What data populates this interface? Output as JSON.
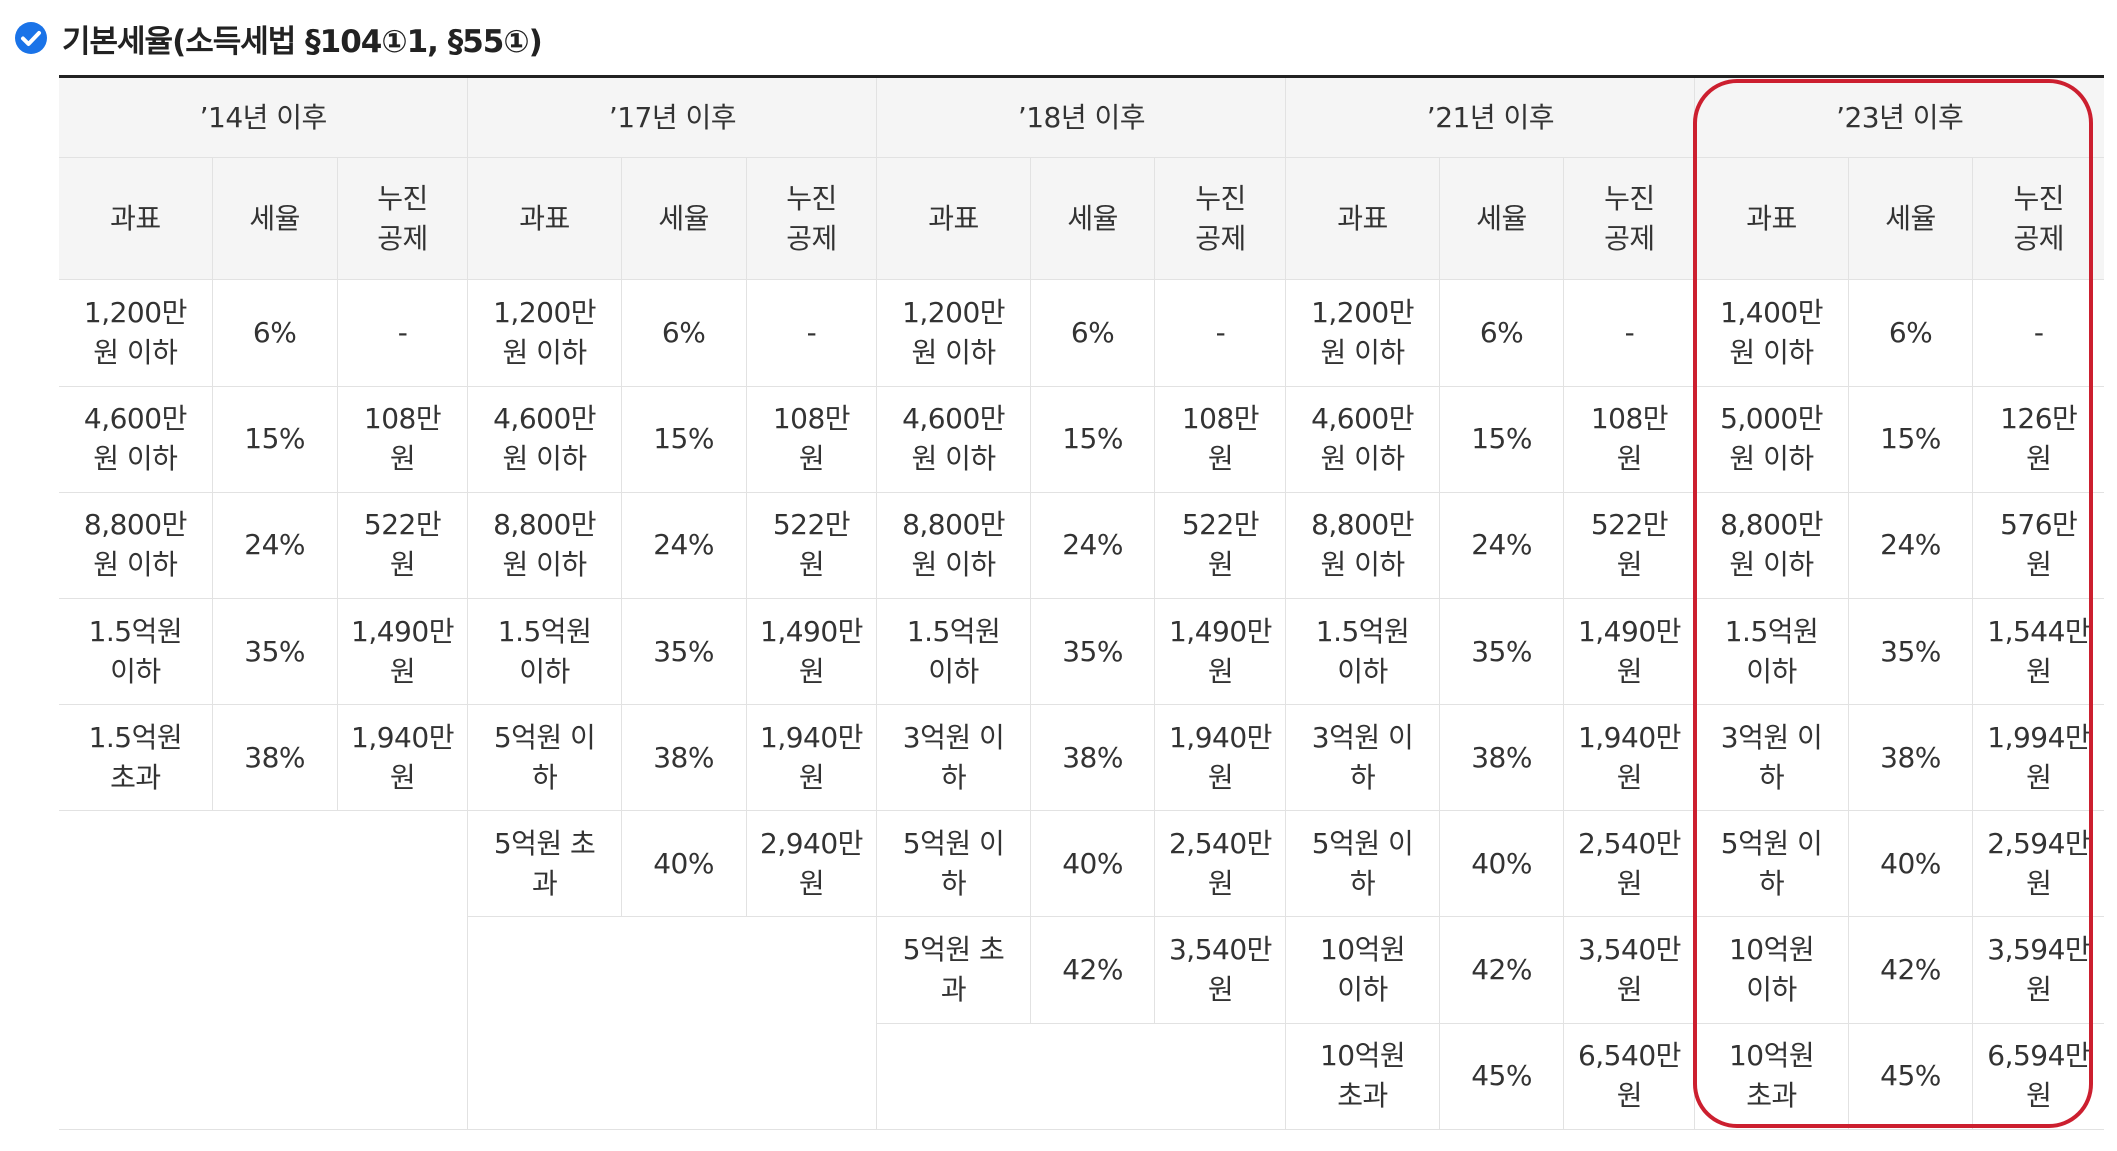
{
  "title": {
    "icon": "check-circle-icon",
    "text": "기본세율(소득세법 §104①1, §55①)"
  },
  "colors": {
    "accent_check": "#1a73e8",
    "highlight_border": "#cc1f2f",
    "header_bg": "#f5f5f5"
  },
  "table": {
    "periods": [
      "’14년 이후",
      "’17년 이후",
      "’18년 이후",
      "’21년 이후",
      "’23년 이후"
    ],
    "sub_headers": {
      "base": "과표",
      "rate": "세율",
      "deduction": "누진\n공제"
    },
    "columns": [
      {
        "rows": [
          [
            "1,200만\n원 이하",
            "6%",
            "-"
          ],
          [
            "4,600만\n원 이하",
            "15%",
            "108만\n원"
          ],
          [
            "8,800만\n원 이하",
            "24%",
            "522만\n원"
          ],
          [
            "1.5억원\n이하",
            "35%",
            "1,490만\n원"
          ],
          [
            "1.5억원\n초과",
            "38%",
            "1,940만\n원"
          ]
        ]
      },
      {
        "rows": [
          [
            "1,200만\n원 이하",
            "6%",
            "-"
          ],
          [
            "4,600만\n원 이하",
            "15%",
            "108만\n원"
          ],
          [
            "8,800만\n원 이하",
            "24%",
            "522만\n원"
          ],
          [
            "1.5억원\n이하",
            "35%",
            "1,490만\n원"
          ],
          [
            "5억원 이\n하",
            "38%",
            "1,940만\n원"
          ],
          [
            "5억원 초\n과",
            "40%",
            "2,940만\n원"
          ]
        ]
      },
      {
        "rows": [
          [
            "1,200만\n원 이하",
            "6%",
            "-"
          ],
          [
            "4,600만\n원 이하",
            "15%",
            "108만\n원"
          ],
          [
            "8,800만\n원 이하",
            "24%",
            "522만\n원"
          ],
          [
            "1.5억원\n이하",
            "35%",
            "1,490만\n원"
          ],
          [
            "3억원 이\n하",
            "38%",
            "1,940만\n원"
          ],
          [
            "5억원 이\n하",
            "40%",
            "2,540만\n원"
          ],
          [
            "5억원 초\n과",
            "42%",
            "3,540만\n원"
          ]
        ]
      },
      {
        "rows": [
          [
            "1,200만\n원 이하",
            "6%",
            "-"
          ],
          [
            "4,600만\n원 이하",
            "15%",
            "108만\n원"
          ],
          [
            "8,800만\n원 이하",
            "24%",
            "522만\n원"
          ],
          [
            "1.5억원\n이하",
            "35%",
            "1,490만\n원"
          ],
          [
            "3억원 이\n하",
            "38%",
            "1,940만\n원"
          ],
          [
            "5억원 이\n하",
            "40%",
            "2,540만\n원"
          ],
          [
            "10억원\n이하",
            "42%",
            "3,540만\n원"
          ],
          [
            "10억원\n초과",
            "45%",
            "6,540만\n원"
          ]
        ]
      },
      {
        "rows": [
          [
            "1,400만\n원 이하",
            "6%",
            "-"
          ],
          [
            "5,000만\n원 이하",
            "15%",
            "126만\n원"
          ],
          [
            "8,800만\n원 이하",
            "24%",
            "576만\n원"
          ],
          [
            "1.5억원\n이하",
            "35%",
            "1,544만\n원"
          ],
          [
            "3억원 이\n하",
            "38%",
            "1,994만\n원"
          ],
          [
            "5억원 이\n하",
            "40%",
            "2,594만\n원"
          ],
          [
            "10억원\n이하",
            "42%",
            "3,594만\n원"
          ],
          [
            "10억원\n초과",
            "45%",
            "6,594만\n원"
          ]
        ]
      }
    ]
  }
}
